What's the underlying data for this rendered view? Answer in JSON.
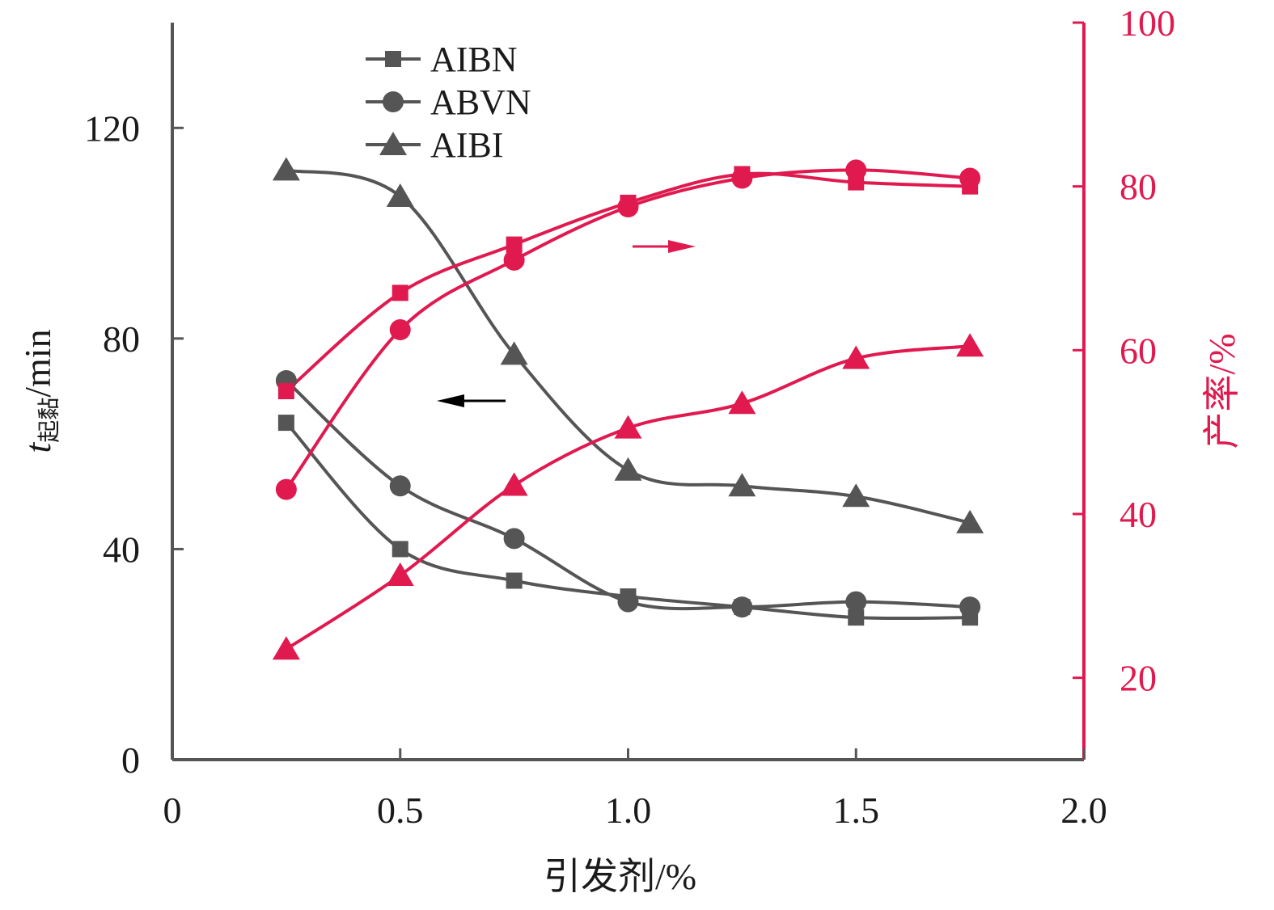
{
  "chart_data": {
    "type": "line",
    "title": "",
    "x": [
      0.25,
      0.5,
      0.75,
      1.0,
      1.25,
      1.5,
      1.75
    ],
    "xlabel": "引发剂/%",
    "xlim": [
      0,
      2.0
    ],
    "xticks": [
      "0",
      "0.5",
      "1.0",
      "1.5",
      "2.0"
    ],
    "y_left": {
      "label_main": "t",
      "label_sub": "起黏",
      "label_unit": "/min",
      "lim": [
        0,
        140
      ],
      "ticks": [
        "0",
        "40",
        "80",
        "120"
      ],
      "color": "#1a1a1a"
    },
    "y_right": {
      "label": "产率/%",
      "lim": [
        10,
        100
      ],
      "ticks": [
        "20",
        "40",
        "60",
        "80",
        "100"
      ],
      "color": "#e01a4f"
    },
    "series": [
      {
        "name": "AIBN",
        "axis": "left",
        "marker": "square",
        "color": "#4a4a4a",
        "values": [
          64,
          40,
          34,
          31,
          29,
          27,
          27
        ]
      },
      {
        "name": "ABVN",
        "axis": "left",
        "marker": "circle",
        "color": "#4a4a4a",
        "values": [
          72,
          52,
          42,
          30,
          29,
          30,
          29
        ]
      },
      {
        "name": "AIBI",
        "axis": "left",
        "marker": "triangle",
        "color": "#4a4a4a",
        "values": [
          112,
          107,
          77,
          55,
          52,
          50,
          45
        ]
      },
      {
        "name": "AIBN",
        "axis": "right",
        "marker": "square",
        "color": "#e01a4f",
        "values": [
          55.0,
          67.0,
          72.9,
          78.0,
          81.5,
          80.5,
          80.0
        ]
      },
      {
        "name": "ABVN",
        "axis": "right",
        "marker": "circle",
        "color": "#e01a4f",
        "values": [
          43.0,
          62.5,
          71.0,
          77.5,
          81.0,
          82.0,
          81.0
        ]
      },
      {
        "name": "AIBI",
        "axis": "right",
        "marker": "triangle",
        "color": "#e01a4f",
        "values": [
          23.5,
          32.5,
          43.5,
          50.5,
          53.5,
          59.0,
          60.5
        ]
      }
    ],
    "legend": {
      "position": "top-left",
      "entries": [
        {
          "label": "AIBN",
          "marker": "square"
        },
        {
          "label": "ABVN",
          "marker": "circle"
        },
        {
          "label": "AIBI",
          "marker": "triangle"
        }
      ]
    },
    "annotations": [
      {
        "type": "arrow",
        "direction": "left",
        "color": "#000000",
        "meaning": "left-axis"
      },
      {
        "type": "arrow",
        "direction": "right",
        "color": "#e01a4f",
        "meaning": "right-axis"
      }
    ]
  }
}
